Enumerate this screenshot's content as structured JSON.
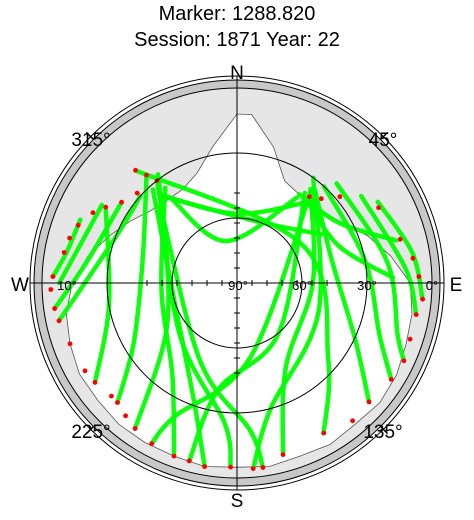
{
  "chart_data": {
    "type": "scatter",
    "projection": "polar",
    "title": "Marker: 1288.820",
    "subtitle": "Session: 1871 Year: 22",
    "cardinal_labels": {
      "north": "N",
      "east": "E",
      "south": "S",
      "west": "W"
    },
    "azimuth_labels": [
      "45°",
      "135°",
      "225°",
      "315°"
    ],
    "azimuths_deg": [
      45,
      135,
      225,
      315
    ],
    "elevation_labels": [
      "0°",
      "30°",
      "60°",
      "90°",
      "10°"
    ],
    "elevations_deg": [
      0,
      30,
      60,
      90,
      10
    ],
    "elevation_circles_deg": [
      0,
      30,
      60
    ],
    "colors": {
      "track": "#00ff00",
      "low_elevation": "#ff0000",
      "outer_ring": "#c8c8c8",
      "obstruction": "#e6e6e6"
    },
    "elevation_mask_deg": 10,
    "obstruction_horizon": [
      {
        "az": 5,
        "el": 12
      },
      {
        "az": 15,
        "el": 25
      },
      {
        "az": 25,
        "el": 38
      },
      {
        "az": 35,
        "el": 40
      },
      {
        "az": 50,
        "el": 40
      },
      {
        "az": 60,
        "el": 34
      },
      {
        "az": 70,
        "el": 26
      },
      {
        "az": 80,
        "el": 18
      },
      {
        "az": 90,
        "el": 10
      },
      {
        "az": 100,
        "el": 8
      },
      {
        "az": 110,
        "el": 7
      },
      {
        "az": 120,
        "el": 5
      },
      {
        "az": 130,
        "el": 4
      },
      {
        "az": 140,
        "el": 5
      },
      {
        "az": 150,
        "el": 4
      },
      {
        "az": 160,
        "el": 5
      },
      {
        "az": 170,
        "el": 4
      },
      {
        "az": 180,
        "el": 5
      },
      {
        "az": 190,
        "el": 4
      },
      {
        "az": 200,
        "el": 5
      },
      {
        "az": 210,
        "el": 5
      },
      {
        "az": 220,
        "el": 5
      },
      {
        "az": 230,
        "el": 6
      },
      {
        "az": 240,
        "el": 6
      },
      {
        "az": 250,
        "el": 8
      },
      {
        "az": 260,
        "el": 10
      },
      {
        "az": 270,
        "el": 14
      },
      {
        "az": 280,
        "el": 20
      },
      {
        "az": 290,
        "el": 27
      },
      {
        "az": 300,
        "el": 33
      },
      {
        "az": 310,
        "el": 38
      },
      {
        "az": 320,
        "el": 40
      },
      {
        "az": 330,
        "el": 40
      },
      {
        "az": 340,
        "el": 36
      },
      {
        "az": 350,
        "el": 26
      },
      {
        "az": 360,
        "el": 12
      }
    ],
    "series": [
      {
        "points": [
          {
            "az": 322,
            "el": 30
          },
          {
            "az": 300,
            "el": 52
          },
          {
            "az": 235,
            "el": 50
          },
          {
            "az": 215,
            "el": 8
          }
        ]
      },
      {
        "points": [
          {
            "az": 320,
            "el": 25
          },
          {
            "az": 285,
            "el": 45
          },
          {
            "az": 240,
            "el": 35
          },
          {
            "az": 225,
            "el": 12
          }
        ]
      },
      {
        "points": [
          {
            "az": 323,
            "el": 35
          },
          {
            "az": 265,
            "el": 55
          },
          {
            "az": 215,
            "el": 38
          },
          {
            "az": 200,
            "el": 5
          }
        ]
      },
      {
        "points": [
          {
            "az": 318,
            "el": 32
          },
          {
            "az": 255,
            "el": 60
          },
          {
            "az": 200,
            "el": 32
          },
          {
            "az": 190,
            "el": 4
          }
        ]
      },
      {
        "points": [
          {
            "az": 324,
            "el": 28
          },
          {
            "az": 230,
            "el": 55
          },
          {
            "az": 185,
            "el": 25
          },
          {
            "az": 182,
            "el": 5
          }
        ]
      },
      {
        "points": [
          {
            "az": 315,
            "el": 40
          },
          {
            "az": 205,
            "el": 50
          },
          {
            "az": 175,
            "el": 22
          },
          {
            "az": 172,
            "el": 4
          }
        ]
      },
      {
        "points": [
          {
            "az": 300,
            "el": 20
          },
          {
            "az": 260,
            "el": 30
          },
          {
            "az": 235,
            "el": 10
          }
        ]
      },
      {
        "points": [
          {
            "az": 312,
            "el": 30
          },
          {
            "az": 290,
            "el": 30
          },
          {
            "az": 258,
            "el": 6
          }
        ]
      },
      {
        "points": [
          {
            "az": 305,
            "el": 25
          },
          {
            "az": 278,
            "el": 20
          },
          {
            "az": 262,
            "el": 5
          }
        ]
      },
      {
        "points": [
          {
            "az": 300,
            "el": 18
          },
          {
            "az": 285,
            "el": 16
          },
          {
            "az": 270,
            "el": 8
          }
        ]
      },
      {
        "points": [
          {
            "az": 292,
            "el": 12
          },
          {
            "az": 280,
            "el": 10
          },
          {
            "az": 272,
            "el": 5
          }
        ]
      },
      {
        "points": [
          {
            "az": 318,
            "el": 20
          },
          {
            "az": 60,
            "el": 55
          },
          {
            "az": 130,
            "el": 35
          },
          {
            "az": 150,
            "el": 10
          }
        ]
      },
      {
        "points": [
          {
            "az": 38,
            "el": 35
          },
          {
            "az": 90,
            "el": 55
          },
          {
            "az": 150,
            "el": 45
          },
          {
            "az": 165,
            "el": 8
          }
        ]
      },
      {
        "points": [
          {
            "az": 36,
            "el": 30
          },
          {
            "az": 110,
            "el": 50
          },
          {
            "az": 165,
            "el": 30
          },
          {
            "az": 175,
            "el": 4
          }
        ]
      },
      {
        "points": [
          {
            "az": 40,
            "el": 34
          },
          {
            "az": 75,
            "el": 45
          },
          {
            "az": 115,
            "el": 30
          },
          {
            "az": 132,
            "el": 8
          }
        ]
      },
      {
        "points": [
          {
            "az": 42,
            "el": 30
          },
          {
            "az": 80,
            "el": 30
          },
          {
            "az": 110,
            "el": 20
          },
          {
            "az": 122,
            "el": 6
          }
        ]
      },
      {
        "points": [
          {
            "az": 45,
            "el": 25
          },
          {
            "az": 82,
            "el": 20
          },
          {
            "az": 108,
            "el": 12
          },
          {
            "az": 115,
            "el": 5
          }
        ]
      },
      {
        "points": [
          {
            "az": 55,
            "el": 20
          },
          {
            "az": 85,
            "el": 12
          },
          {
            "az": 100,
            "el": 6
          }
        ]
      },
      {
        "points": [
          {
            "az": 60,
            "el": 15
          },
          {
            "az": 80,
            "el": 8
          },
          {
            "az": 95,
            "el": 4
          }
        ]
      },
      {
        "points": [
          {
            "az": 35,
            "el": 40
          },
          {
            "az": 60,
            "el": 35
          },
          {
            "az": 75,
            "el": 14
          }
        ]
      },
      {
        "points": [
          {
            "az": 40,
            "el": 40
          },
          {
            "az": 70,
            "el": 40
          },
          {
            "az": 88,
            "el": 18
          }
        ]
      },
      {
        "points": [
          {
            "az": 37,
            "el": 38
          },
          {
            "az": 140,
            "el": 60
          },
          {
            "az": 190,
            "el": 40
          },
          {
            "az": 195,
            "el": 5
          }
        ]
      },
      {
        "points": [
          {
            "az": 39,
            "el": 36
          },
          {
            "az": 170,
            "el": 55
          },
          {
            "az": 205,
            "el": 22
          },
          {
            "az": 208,
            "el": 6
          }
        ]
      },
      {
        "points": [
          {
            "az": 320,
            "el": 38
          },
          {
            "az": 20,
            "el": 60
          },
          {
            "az": 60,
            "el": 45
          }
        ]
      },
      {
        "points": [
          {
            "az": 319,
            "el": 36
          },
          {
            "az": 0,
            "el": 58
          },
          {
            "az": 43,
            "el": 38
          }
        ]
      },
      {
        "points": [
          {
            "az": 322,
            "el": 40
          },
          {
            "az": 345,
            "el": 70
          },
          {
            "az": 35,
            "el": 42
          }
        ]
      }
    ],
    "low_elevation_points": [
      {
        "az": 322,
        "el": 30
      },
      {
        "az": 320,
        "el": 25
      },
      {
        "az": 318,
        "el": 20
      },
      {
        "az": 312,
        "el": 28
      },
      {
        "az": 305,
        "el": 25
      },
      {
        "az": 300,
        "el": 20
      },
      {
        "az": 296,
        "el": 16
      },
      {
        "az": 290,
        "el": 12
      },
      {
        "az": 285,
        "el": 10
      },
      {
        "az": 280,
        "el": 9
      },
      {
        "az": 272,
        "el": 5
      },
      {
        "az": 268,
        "el": 4
      },
      {
        "az": 262,
        "el": 5
      },
      {
        "az": 258,
        "el": 6
      },
      {
        "az": 250,
        "el": 8
      },
      {
        "az": 240,
        "el": 9
      },
      {
        "az": 235,
        "el": 10
      },
      {
        "az": 228,
        "el": 12
      },
      {
        "az": 225,
        "el": 12
      },
      {
        "az": 220,
        "el": 10
      },
      {
        "az": 215,
        "el": 8
      },
      {
        "az": 208,
        "el": 6
      },
      {
        "az": 200,
        "el": 5
      },
      {
        "az": 195,
        "el": 5
      },
      {
        "az": 190,
        "el": 4
      },
      {
        "az": 182,
        "el": 5
      },
      {
        "az": 175,
        "el": 4
      },
      {
        "az": 172,
        "el": 4
      },
      {
        "az": 165,
        "el": 8
      },
      {
        "az": 150,
        "el": 10
      },
      {
        "az": 140,
        "el": 7
      },
      {
        "az": 132,
        "el": 8
      },
      {
        "az": 122,
        "el": 6
      },
      {
        "az": 115,
        "el": 5
      },
      {
        "az": 108,
        "el": 6
      },
      {
        "az": 100,
        "el": 6
      },
      {
        "az": 95,
        "el": 4
      },
      {
        "az": 88,
        "el": 6
      },
      {
        "az": 82,
        "el": 8
      },
      {
        "az": 75,
        "el": 12
      },
      {
        "az": 62,
        "el": 16
      },
      {
        "az": 50,
        "el": 28
      },
      {
        "az": 45,
        "el": 35
      },
      {
        "az": 40,
        "el": 38
      }
    ]
  }
}
